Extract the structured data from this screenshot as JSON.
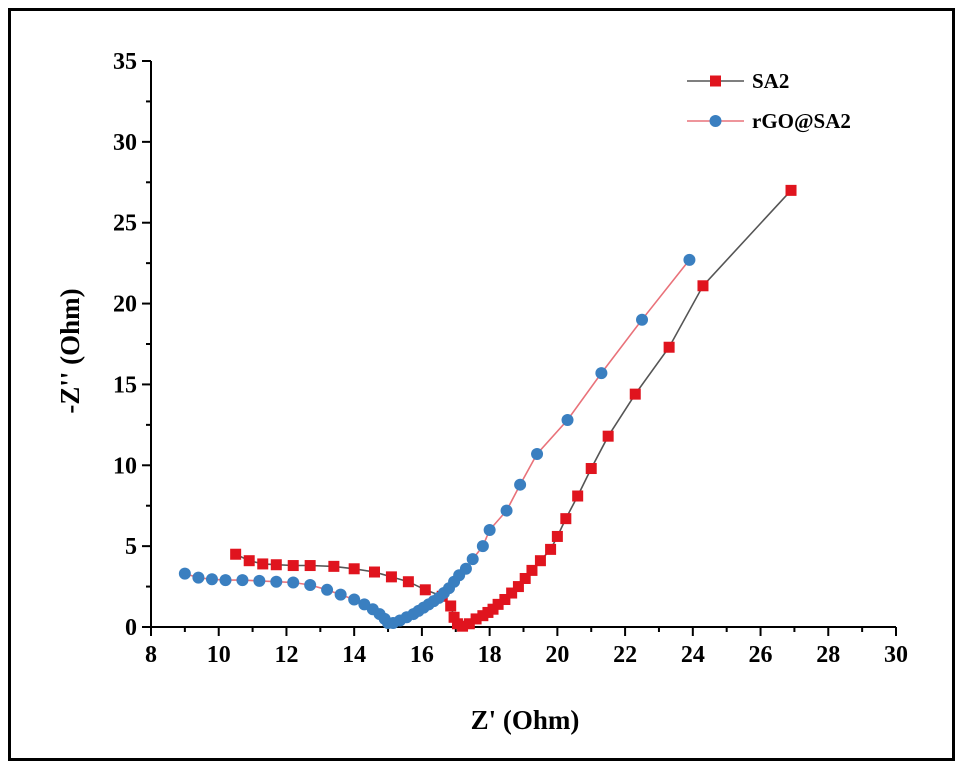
{
  "chart_data": {
    "type": "scatter",
    "title": "",
    "xlabel": "Z' (Ohm)",
    "ylabel": "-Z'' (Ohm)",
    "xlim": [
      8,
      30
    ],
    "ylim": [
      0,
      35
    ],
    "x_ticks": [
      "8",
      "10",
      "12",
      "14",
      "16",
      "18",
      "20",
      "22",
      "24",
      "26",
      "28",
      "30"
    ],
    "y_ticks": [
      "0",
      "5",
      "10",
      "15",
      "20",
      "25",
      "30",
      "35"
    ],
    "grid": false,
    "legend_position": "top-right",
    "series": [
      {
        "name": "SA2",
        "marker": "square",
        "marker_color": "#e0141e",
        "line_color": "#555555",
        "points": [
          [
            10.5,
            4.5
          ],
          [
            10.9,
            4.1
          ],
          [
            11.3,
            3.9
          ],
          [
            11.7,
            3.85
          ],
          [
            12.2,
            3.8
          ],
          [
            12.7,
            3.8
          ],
          [
            13.4,
            3.75
          ],
          [
            14.0,
            3.6
          ],
          [
            14.6,
            3.4
          ],
          [
            15.1,
            3.1
          ],
          [
            15.6,
            2.8
          ],
          [
            16.1,
            2.3
          ],
          [
            16.6,
            1.9
          ],
          [
            16.85,
            1.3
          ],
          [
            16.95,
            0.6
          ],
          [
            17.05,
            0.2
          ],
          [
            17.2,
            0.05
          ],
          [
            17.4,
            0.2
          ],
          [
            17.6,
            0.5
          ],
          [
            17.8,
            0.7
          ],
          [
            17.95,
            0.9
          ],
          [
            18.1,
            1.1
          ],
          [
            18.25,
            1.4
          ],
          [
            18.45,
            1.7
          ],
          [
            18.65,
            2.1
          ],
          [
            18.85,
            2.5
          ],
          [
            19.05,
            3.0
          ],
          [
            19.25,
            3.5
          ],
          [
            19.5,
            4.1
          ],
          [
            19.8,
            4.8
          ],
          [
            20.0,
            5.6
          ],
          [
            20.25,
            6.7
          ],
          [
            20.6,
            8.1
          ],
          [
            21.0,
            9.8
          ],
          [
            21.5,
            11.8
          ],
          [
            22.3,
            14.4
          ],
          [
            23.3,
            17.3
          ],
          [
            24.3,
            21.1
          ],
          [
            26.9,
            27.0
          ]
        ]
      },
      {
        "name": "rGO@SA2",
        "marker": "circle",
        "marker_color": "#3a7fc0",
        "line_color": "#e9727a",
        "points": [
          [
            9.0,
            3.3
          ],
          [
            9.4,
            3.05
          ],
          [
            9.8,
            2.95
          ],
          [
            10.2,
            2.9
          ],
          [
            10.7,
            2.9
          ],
          [
            11.2,
            2.85
          ],
          [
            11.7,
            2.8
          ],
          [
            12.2,
            2.75
          ],
          [
            12.7,
            2.6
          ],
          [
            13.2,
            2.3
          ],
          [
            13.6,
            2.0
          ],
          [
            14.0,
            1.7
          ],
          [
            14.3,
            1.4
          ],
          [
            14.55,
            1.1
          ],
          [
            14.75,
            0.8
          ],
          [
            14.9,
            0.5
          ],
          [
            15.0,
            0.25
          ],
          [
            15.15,
            0.25
          ],
          [
            15.35,
            0.4
          ],
          [
            15.55,
            0.6
          ],
          [
            15.75,
            0.8
          ],
          [
            15.9,
            1.0
          ],
          [
            16.05,
            1.2
          ],
          [
            16.2,
            1.4
          ],
          [
            16.35,
            1.6
          ],
          [
            16.5,
            1.8
          ],
          [
            16.65,
            2.1
          ],
          [
            16.8,
            2.4
          ],
          [
            16.95,
            2.8
          ],
          [
            17.1,
            3.2
          ],
          [
            17.3,
            3.6
          ],
          [
            17.5,
            4.2
          ],
          [
            17.8,
            5.0
          ],
          [
            18.0,
            6.0
          ],
          [
            18.5,
            7.2
          ],
          [
            18.9,
            8.8
          ],
          [
            19.4,
            10.7
          ],
          [
            20.3,
            12.8
          ],
          [
            21.3,
            15.7
          ],
          [
            22.5,
            19.0
          ],
          [
            23.9,
            22.7
          ]
        ]
      }
    ]
  }
}
